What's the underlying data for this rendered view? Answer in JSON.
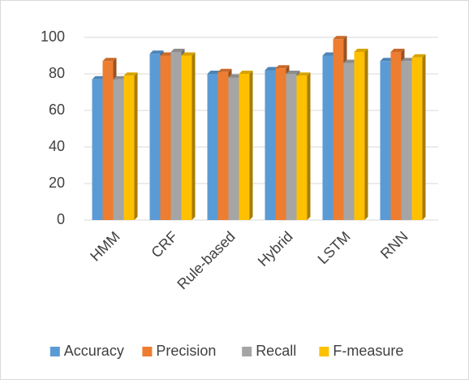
{
  "chart_data": {
    "type": "bar",
    "categories": [
      "HMM",
      "CRF",
      "Rule-based",
      "Hybrid",
      "LSTM",
      "RNN"
    ],
    "series": [
      {
        "name": "Accuracy",
        "color": "#5b9bd5",
        "values": [
          77,
          91,
          80,
          82,
          90,
          87
        ]
      },
      {
        "name": "Precision",
        "color": "#ed7d31",
        "values": [
          87,
          90,
          81,
          83,
          99,
          92
        ]
      },
      {
        "name": "Recall",
        "color": "#a5a5a5",
        "values": [
          77,
          92,
          78,
          80,
          86,
          87
        ]
      },
      {
        "name": "F-measure",
        "color": "#ffc000",
        "values": [
          79,
          90,
          80,
          79,
          92,
          89
        ]
      }
    ],
    "ylim": [
      0,
      100
    ],
    "yticks": [
      0,
      20,
      40,
      60,
      80,
      100
    ],
    "grid": true,
    "legend": "bottom"
  }
}
